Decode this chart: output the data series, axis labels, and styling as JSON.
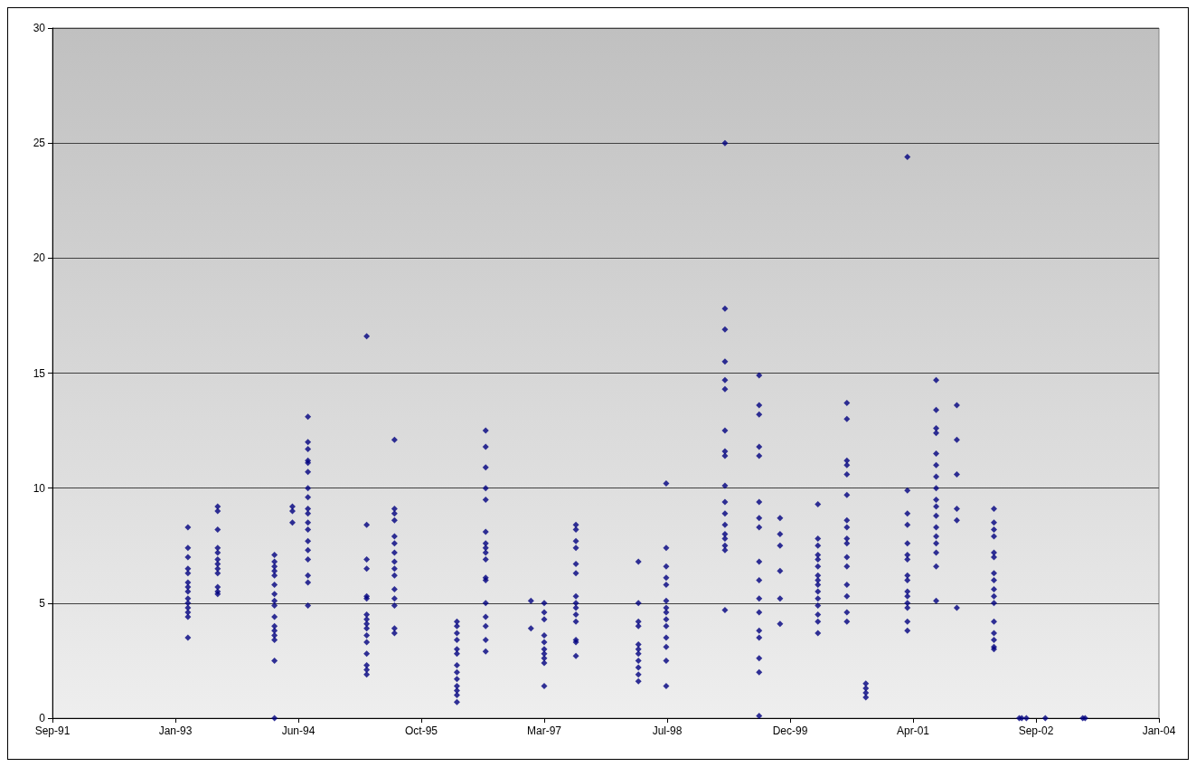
{
  "chart_data": {
    "type": "scatter",
    "marker": "diamond",
    "grid": "y",
    "xlim": [
      "1991-09-19",
      "2004-01-14"
    ],
    "xticks": [
      {
        "value": "1991-09-19",
        "label": "Sep-91"
      },
      {
        "value": "1993-01-31",
        "label": "Jan-93"
      },
      {
        "value": "1994-06-15",
        "label": "Jun-94"
      },
      {
        "value": "1995-10-28",
        "label": "Oct-95"
      },
      {
        "value": "1997-03-11",
        "label": "Mar-97"
      },
      {
        "value": "1998-07-24",
        "label": "Jul-98"
      },
      {
        "value": "1999-12-06",
        "label": "Dec-99"
      },
      {
        "value": "2001-04-19",
        "label": "Apr-01"
      },
      {
        "value": "2002-09-01",
        "label": "Sep-02"
      },
      {
        "value": "2004-01-14",
        "label": "Jan-04"
      }
    ],
    "ylim": [
      0,
      30
    ],
    "yticks": [
      0,
      5,
      10,
      15,
      20,
      25,
      30
    ],
    "series": [
      {
        "color": "#000080",
        "x": [
          "1993-03-23",
          "1993-03-23",
          "1993-03-23",
          "1993-03-23",
          "1993-03-23",
          "1993-03-23",
          "1993-03-23",
          "1993-03-23",
          "1993-03-23",
          "1993-03-23",
          "1993-03-23",
          "1993-03-23",
          "1993-03-23",
          "1993-03-23"
        ],
        "values": [
          8.3,
          7.4,
          7.0,
          6.5,
          6.3,
          5.9,
          5.7,
          5.5,
          5.2,
          5.0,
          4.8,
          4.6,
          4.4,
          3.5
        ]
      },
      {
        "color": "#000080",
        "x": [
          "1993-07-22",
          "1993-07-22",
          "1993-07-22",
          "1993-07-22",
          "1993-07-22",
          "1993-07-22",
          "1993-07-22",
          "1993-07-22",
          "1993-07-22",
          "1993-07-22",
          "1993-07-22",
          "1993-07-22"
        ],
        "values": [
          9.2,
          9.0,
          8.2,
          7.4,
          7.2,
          6.9,
          6.7,
          6.5,
          6.3,
          5.7,
          5.5,
          5.4
        ]
      },
      {
        "color": "#000080",
        "x": [
          "1994-03-10",
          "1994-03-10",
          "1994-03-10",
          "1994-03-10",
          "1994-03-10",
          "1994-03-10",
          "1994-03-10",
          "1994-03-10",
          "1994-03-10",
          "1994-03-10",
          "1994-03-10",
          "1994-03-10",
          "1994-03-10",
          "1994-03-10",
          "1994-03-10",
          "1994-03-10"
        ],
        "values": [
          7.1,
          6.8,
          6.6,
          6.4,
          6.2,
          5.8,
          5.4,
          5.1,
          4.9,
          4.4,
          4.0,
          3.8,
          3.6,
          3.4,
          2.5,
          0
        ]
      },
      {
        "color": "#000080",
        "x": [
          "1994-05-22",
          "1994-05-22",
          "1994-05-22"
        ],
        "values": [
          9.2,
          9.0,
          8.5
        ]
      },
      {
        "color": "#000080",
        "x": [
          "1994-07-24",
          "1994-07-24",
          "1994-07-24",
          "1994-07-24",
          "1994-07-24",
          "1994-07-24",
          "1994-07-24",
          "1994-07-24",
          "1994-07-24",
          "1994-07-24",
          "1994-07-24",
          "1994-07-24",
          "1994-07-24",
          "1994-07-24",
          "1994-07-24",
          "1994-07-24",
          "1994-07-24",
          "1994-07-24"
        ],
        "values": [
          13.1,
          12.0,
          11.7,
          11.2,
          11.1,
          10.7,
          10.0,
          9.6,
          9.1,
          8.9,
          8.5,
          8.2,
          7.7,
          7.3,
          6.9,
          6.2,
          5.9,
          4.9
        ]
      },
      {
        "color": "#000080",
        "x": [
          "1995-03-20",
          "1995-03-20",
          "1995-03-20",
          "1995-03-20",
          "1995-03-20",
          "1995-03-20",
          "1995-03-20",
          "1995-03-20",
          "1995-03-20",
          "1995-03-20",
          "1995-03-20",
          "1995-03-20",
          "1995-03-20",
          "1995-03-20",
          "1995-03-20",
          "1995-03-20"
        ],
        "values": [
          16.6,
          8.4,
          6.9,
          6.5,
          5.3,
          5.2,
          4.5,
          4.3,
          4.1,
          3.9,
          3.6,
          3.3,
          2.8,
          2.3,
          2.1,
          1.9
        ]
      },
      {
        "color": "#000080",
        "x": [
          "1995-07-11",
          "1995-07-11",
          "1995-07-11",
          "1995-07-11",
          "1995-07-11",
          "1995-07-11",
          "1995-07-11",
          "1995-07-11",
          "1995-07-11",
          "1995-07-11",
          "1995-07-11",
          "1995-07-11",
          "1995-07-11",
          "1995-07-11",
          "1995-07-11"
        ],
        "values": [
          12.1,
          9.1,
          8.9,
          8.6,
          7.9,
          7.6,
          7.2,
          6.8,
          6.5,
          6.2,
          5.6,
          5.2,
          4.9,
          3.9,
          3.7
        ]
      },
      {
        "color": "#000080",
        "x": [
          "1996-03-21",
          "1996-03-21",
          "1996-03-21",
          "1996-03-21",
          "1996-03-21",
          "1996-03-21",
          "1996-03-21",
          "1996-03-21",
          "1996-03-21",
          "1996-03-21",
          "1996-03-21",
          "1996-03-21",
          "1996-03-21"
        ],
        "values": [
          4.2,
          4.0,
          3.7,
          3.4,
          3.0,
          2.8,
          2.3,
          2.0,
          1.7,
          1.4,
          1.2,
          1.0,
          0.7
        ]
      },
      {
        "color": "#000080",
        "x": [
          "1996-07-16",
          "1996-07-16",
          "1996-07-16",
          "1996-07-16",
          "1996-07-16",
          "1996-07-16",
          "1996-07-16",
          "1996-07-16",
          "1996-07-16",
          "1996-07-16",
          "1996-07-16",
          "1996-07-16",
          "1996-07-16",
          "1996-07-16",
          "1996-07-16",
          "1996-07-16",
          "1996-07-16"
        ],
        "values": [
          12.5,
          11.8,
          10.9,
          10.0,
          9.5,
          8.1,
          7.6,
          7.4,
          7.2,
          6.9,
          6.1,
          6.0,
          5.0,
          4.4,
          4.0,
          3.4,
          2.9
        ]
      },
      {
        "color": "#000080",
        "x": [
          "1997-01-16",
          "1997-01-16"
        ],
        "values": [
          5.1,
          3.9
        ]
      },
      {
        "color": "#000080",
        "x": [
          "1997-03-11",
          "1997-03-11",
          "1997-03-11",
          "1997-03-11",
          "1997-03-11",
          "1997-03-11",
          "1997-03-11",
          "1997-03-11",
          "1997-03-11",
          "1997-03-11"
        ],
        "values": [
          5.0,
          4.6,
          4.3,
          3.6,
          3.3,
          3.0,
          2.8,
          2.6,
          2.4,
          1.4
        ]
      },
      {
        "color": "#000080",
        "x": [
          "1997-07-18",
          "1997-07-18",
          "1997-07-18",
          "1997-07-18",
          "1997-07-18",
          "1997-07-18",
          "1997-07-18",
          "1997-07-18",
          "1997-07-18",
          "1997-07-18",
          "1997-07-18",
          "1997-07-18",
          "1997-07-18",
          "1997-07-18"
        ],
        "values": [
          8.4,
          8.2,
          7.7,
          7.4,
          6.7,
          6.3,
          5.3,
          5.0,
          4.8,
          4.5,
          4.2,
          3.4,
          3.3,
          2.7
        ]
      },
      {
        "color": "#000080",
        "x": [
          "1998-03-29",
          "1998-03-29",
          "1998-03-29",
          "1998-03-29",
          "1998-03-29",
          "1998-03-29",
          "1998-03-29",
          "1998-03-29",
          "1998-03-29",
          "1998-03-29",
          "1998-03-29"
        ],
        "values": [
          6.8,
          5.0,
          4.2,
          4.0,
          3.2,
          3.0,
          2.8,
          2.5,
          2.2,
          1.9,
          1.6
        ]
      },
      {
        "color": "#000080",
        "x": [
          "1998-07-20",
          "1998-07-20",
          "1998-07-20",
          "1998-07-20",
          "1998-07-20",
          "1998-07-20",
          "1998-07-20",
          "1998-07-20",
          "1998-07-20",
          "1998-07-20",
          "1998-07-20",
          "1998-07-20",
          "1998-07-20",
          "1998-07-20"
        ],
        "values": [
          10.2,
          7.4,
          6.6,
          6.1,
          5.8,
          5.1,
          4.8,
          4.6,
          4.3,
          4.0,
          3.5,
          3.1,
          2.5,
          1.4
        ]
      },
      {
        "color": "#000080",
        "x": [
          "1999-03-16",
          "1999-03-16",
          "1999-03-16",
          "1999-03-16",
          "1999-03-16",
          "1999-03-16",
          "1999-03-16",
          "1999-03-16",
          "1999-03-16",
          "1999-03-16",
          "1999-03-16",
          "1999-03-16",
          "1999-03-16",
          "1999-03-16",
          "1999-03-16",
          "1999-03-16",
          "1999-03-16",
          "1999-03-16"
        ],
        "values": [
          25.0,
          17.8,
          16.9,
          15.5,
          14.7,
          14.3,
          12.5,
          11.6,
          11.4,
          10.1,
          9.4,
          8.9,
          8.4,
          8.0,
          7.8,
          7.5,
          7.3,
          4.7
        ]
      },
      {
        "color": "#000080",
        "x": [
          "1999-08-02",
          "1999-08-02",
          "1999-08-02",
          "1999-08-02",
          "1999-08-02",
          "1999-08-02",
          "1999-08-02",
          "1999-08-02",
          "1999-08-02",
          "1999-08-02",
          "1999-08-02",
          "1999-08-02",
          "1999-08-02",
          "1999-08-02",
          "1999-08-02",
          "1999-08-02",
          "1999-08-02"
        ],
        "values": [
          14.9,
          13.6,
          13.2,
          11.8,
          11.4,
          9.4,
          8.7,
          8.3,
          6.8,
          6.0,
          5.2,
          4.6,
          3.8,
          3.5,
          2.6,
          2.0,
          0.1
        ]
      },
      {
        "color": "#000080",
        "x": [
          "1999-10-26",
          "1999-10-26",
          "1999-10-26",
          "1999-10-26",
          "1999-10-26",
          "1999-10-26"
        ],
        "values": [
          8.7,
          8.0,
          7.5,
          6.4,
          5.2,
          4.1
        ]
      },
      {
        "color": "#000080",
        "x": [
          "2000-03-28",
          "2000-03-28",
          "2000-03-28",
          "2000-03-28",
          "2000-03-28",
          "2000-03-28",
          "2000-03-28",
          "2000-03-28",
          "2000-03-28",
          "2000-03-28",
          "2000-03-28",
          "2000-03-28",
          "2000-03-28",
          "2000-03-28",
          "2000-03-28"
        ],
        "values": [
          9.3,
          7.8,
          7.5,
          7.1,
          6.9,
          6.6,
          6.2,
          6.0,
          5.8,
          5.5,
          5.2,
          4.9,
          4.5,
          4.2,
          3.7
        ]
      },
      {
        "color": "#000080",
        "x": [
          "2000-07-24",
          "2000-07-24",
          "2000-07-24",
          "2000-07-24",
          "2000-07-24",
          "2000-07-24",
          "2000-07-24",
          "2000-07-24",
          "2000-07-24",
          "2000-07-24",
          "2000-07-24",
          "2000-07-24",
          "2000-07-24",
          "2000-07-24",
          "2000-07-24",
          "2000-07-24"
        ],
        "values": [
          13.7,
          13.0,
          11.2,
          11.0,
          10.6,
          9.7,
          8.6,
          8.3,
          7.8,
          7.6,
          7.0,
          6.6,
          5.8,
          5.3,
          4.6,
          4.2
        ]
      },
      {
        "color": "#000080",
        "x": [
          "2000-10-09",
          "2000-10-09",
          "2000-10-09",
          "2000-10-09"
        ],
        "values": [
          1.5,
          1.3,
          1.1,
          0.9
        ]
      },
      {
        "color": "#000080",
        "x": [
          "2001-03-27",
          "2001-03-27",
          "2001-03-27",
          "2001-03-27",
          "2001-03-27",
          "2001-03-27",
          "2001-03-27",
          "2001-03-27",
          "2001-03-27",
          "2001-03-27",
          "2001-03-27",
          "2001-03-27",
          "2001-03-27",
          "2001-03-27",
          "2001-03-27"
        ],
        "values": [
          24.4,
          9.9,
          8.9,
          8.4,
          7.6,
          7.1,
          6.9,
          6.2,
          6.0,
          5.5,
          5.3,
          5.0,
          4.8,
          4.2,
          3.8
        ]
      },
      {
        "color": "#000080",
        "x": [
          "2001-07-22",
          "2001-07-22",
          "2001-07-22",
          "2001-07-22",
          "2001-07-22",
          "2001-07-22",
          "2001-07-22",
          "2001-07-22",
          "2001-07-22",
          "2001-07-22",
          "2001-07-22",
          "2001-07-22",
          "2001-07-22",
          "2001-07-22",
          "2001-07-22",
          "2001-07-22",
          "2001-07-22"
        ],
        "values": [
          14.7,
          13.4,
          12.6,
          12.4,
          11.5,
          11.0,
          10.5,
          10.0,
          9.5,
          9.2,
          8.8,
          8.3,
          7.9,
          7.6,
          7.2,
          6.6,
          5.1
        ]
      },
      {
        "color": "#000080",
        "x": [
          "2001-10-14",
          "2001-10-14",
          "2001-10-14",
          "2001-10-14",
          "2001-10-14",
          "2001-10-14"
        ],
        "values": [
          13.6,
          12.1,
          10.6,
          9.1,
          8.6,
          4.8
        ]
      },
      {
        "color": "#000080",
        "x": [
          "2002-03-14",
          "2002-03-14",
          "2002-03-14",
          "2002-03-14",
          "2002-03-14",
          "2002-03-14",
          "2002-03-14",
          "2002-03-14",
          "2002-03-14",
          "2002-03-14",
          "2002-03-14",
          "2002-03-14",
          "2002-03-14",
          "2002-03-14",
          "2002-03-14",
          "2002-03-14"
        ],
        "values": [
          9.1,
          8.5,
          8.2,
          7.9,
          7.2,
          7.0,
          6.3,
          6.0,
          5.6,
          5.3,
          5.0,
          4.2,
          3.7,
          3.4,
          3.1,
          3.0
        ]
      },
      {
        "color": "#000080",
        "x": [
          "2002-06-25",
          "2002-07-05",
          "2002-07-24",
          "2002-10-09",
          "2003-03-10",
          "2003-03-20"
        ],
        "values": [
          0,
          0,
          0,
          0,
          0,
          0
        ]
      }
    ]
  }
}
